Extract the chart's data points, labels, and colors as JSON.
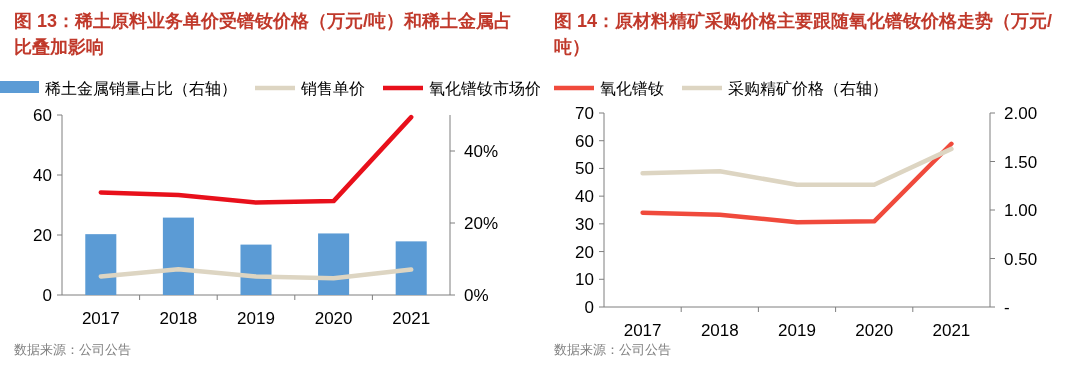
{
  "chart_data": [
    {
      "type": "line",
      "title": "图 13：稀土原料业务单价受镨钕价格（万元/吨）和稀土金属占比叠加影响",
      "categories": [
        "2017",
        "2018",
        "2019",
        "2020",
        "2021"
      ],
      "series": [
        {
          "name": "稀土金属销量占比（右轴）",
          "type": "bar",
          "axis": "y2",
          "color": "#5b9bd5",
          "values": [
            16.9,
            21.5,
            14.0,
            17.1,
            14.9
          ]
        },
        {
          "name": "销售单价",
          "color": "#ddd5c2",
          "values": [
            6.2,
            8.6,
            6.2,
            5.6,
            8.5
          ]
        },
        {
          "name": "氧化镨钕市场价",
          "color": "#e8101b",
          "values": [
            34.2,
            33.3,
            30.8,
            31.3,
            59.3
          ]
        }
      ],
      "ylim": [
        0,
        60
      ],
      "yticks": [
        0,
        20,
        40,
        60
      ],
      "y2lim": [
        0,
        50
      ],
      "y2ticks": [
        {
          "value": 0,
          "label": "0%"
        },
        {
          "value": 20,
          "label": "20%"
        },
        {
          "value": 40,
          "label": "40%"
        }
      ],
      "legend": "top",
      "annotations": [
        "数据来源：公司公告"
      ]
    },
    {
      "type": "line",
      "title": "图 14：原材料精矿采购价格主要跟随氧化镨钕价格走势（万元/吨）",
      "categories": [
        "2017",
        "2018",
        "2019",
        "2020",
        "2021"
      ],
      "series": [
        {
          "name": "氧化镨钕",
          "color": "#f04a3c",
          "values": [
            34.0,
            33.3,
            30.6,
            30.9,
            58.9
          ]
        },
        {
          "name": "采购精矿价格（右轴）",
          "axis": "y2",
          "color": "#ddd5c2",
          "values": [
            1.38,
            1.4,
            1.26,
            1.26,
            1.63
          ]
        }
      ],
      "ylim": [
        0,
        70
      ],
      "yticks": [
        0,
        10,
        20,
        30,
        40,
        50,
        60,
        70
      ],
      "y2lim": [
        0,
        2
      ],
      "y2ticks": [
        {
          "value": 0,
          "label": "-"
        },
        {
          "value": 0.5,
          "label": "0.50"
        },
        {
          "value": 1,
          "label": "1.00"
        },
        {
          "value": 1.5,
          "label": "1.50"
        },
        {
          "value": 2,
          "label": "2.00"
        }
      ],
      "legend": "top left",
      "annotations": [
        "数据来源：公司公告"
      ]
    }
  ]
}
